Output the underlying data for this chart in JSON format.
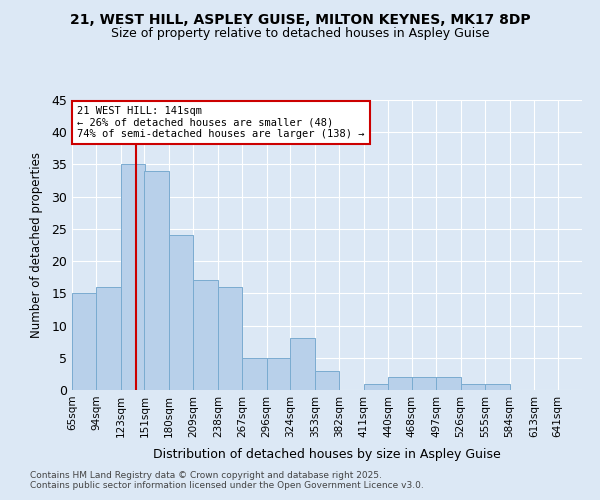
{
  "title1": "21, WEST HILL, ASPLEY GUISE, MILTON KEYNES, MK17 8DP",
  "title2": "Size of property relative to detached houses in Aspley Guise",
  "xlabel": "Distribution of detached houses by size in Aspley Guise",
  "ylabel": "Number of detached properties",
  "bins": [
    65,
    94,
    123,
    151,
    180,
    209,
    238,
    267,
    296,
    324,
    353,
    382,
    411,
    440,
    468,
    497,
    526,
    555,
    584,
    613,
    641
  ],
  "bin_labels": [
    "65sqm",
    "94sqm",
    "123sqm",
    "151sqm",
    "180sqm",
    "209sqm",
    "238sqm",
    "267sqm",
    "296sqm",
    "324sqm",
    "353sqm",
    "382sqm",
    "411sqm",
    "440sqm",
    "468sqm",
    "497sqm",
    "526sqm",
    "555sqm",
    "584sqm",
    "613sqm",
    "641sqm"
  ],
  "values": [
    15,
    16,
    35,
    34,
    24,
    17,
    16,
    5,
    5,
    8,
    3,
    0,
    1,
    2,
    2,
    2,
    1,
    1,
    0,
    0,
    0
  ],
  "bar_color": "#b8d0ea",
  "bar_edge_color": "#7aabd0",
  "bg_color": "#dce8f5",
  "grid_color": "#ffffff",
  "vline_x": 141,
  "vline_color": "#cc0000",
  "annotation_title": "21 WEST HILL: 141sqm",
  "annotation_line1": "← 26% of detached houses are smaller (48)",
  "annotation_line2": "74% of semi-detached houses are larger (138) →",
  "annotation_box_color": "#ffffff",
  "annotation_box_edge": "#cc0000",
  "footer": "Contains HM Land Registry data © Crown copyright and database right 2025.\nContains public sector information licensed under the Open Government Licence v3.0.",
  "ylim": [
    0,
    45
  ],
  "yticks": [
    0,
    5,
    10,
    15,
    20,
    25,
    30,
    35,
    40,
    45
  ]
}
